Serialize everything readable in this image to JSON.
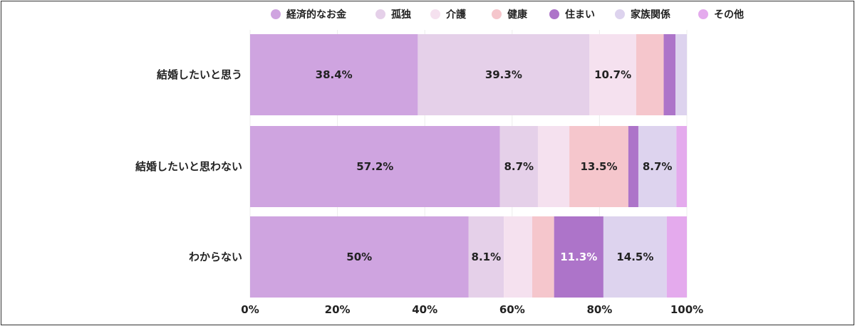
{
  "chart_data": {
    "type": "bar",
    "orientation": "horizontal",
    "stacked": true,
    "normalized": true,
    "legend_position": "top",
    "grid": true,
    "xlim": [
      0,
      100
    ],
    "x_ticks": [
      "0%",
      "20%",
      "40%",
      "60%",
      "80%",
      "100%"
    ],
    "categories": [
      "結婚したいと思う",
      "結婚したいと思わない",
      "わからない"
    ],
    "series": [
      {
        "name": "経済的なお金",
        "color": "#cfa4e0",
        "values": [
          38.4,
          57.2,
          50.0
        ],
        "labels": [
          "38.4%",
          "57.2%",
          "50%"
        ],
        "label_color": "#222222"
      },
      {
        "name": "孤独",
        "color": "#e5d0e9",
        "values": [
          39.3,
          8.7,
          8.1
        ],
        "labels": [
          "39.3%",
          "8.7%",
          "8.1%"
        ],
        "label_color": "#222222"
      },
      {
        "name": "介護",
        "color": "#f5e1ef",
        "values": [
          10.7,
          7.2,
          6.5
        ],
        "labels": [
          "10.7%",
          "",
          ""
        ],
        "label_color": "#222222"
      },
      {
        "name": "健康",
        "color": "#f5c6cc",
        "values": [
          6.3,
          13.5,
          5.0
        ],
        "labels": [
          "",
          "13.5%",
          ""
        ],
        "label_color": "#222222"
      },
      {
        "name": "住まい",
        "color": "#ad74c9",
        "values": [
          2.7,
          2.3,
          11.3
        ],
        "labels": [
          "",
          "",
          "11.3%"
        ],
        "label_color": "#ffffff"
      },
      {
        "name": "家族関係",
        "color": "#ddd3ee",
        "values": [
          2.6,
          8.7,
          14.5
        ],
        "labels": [
          "",
          "8.7%",
          "14.5%"
        ],
        "label_color": "#222222"
      },
      {
        "name": "その他",
        "color": "#e4aaed",
        "values": [
          0.0,
          2.4,
          4.6
        ],
        "labels": [
          "",
          "",
          ""
        ],
        "label_color": "#222222"
      }
    ]
  }
}
